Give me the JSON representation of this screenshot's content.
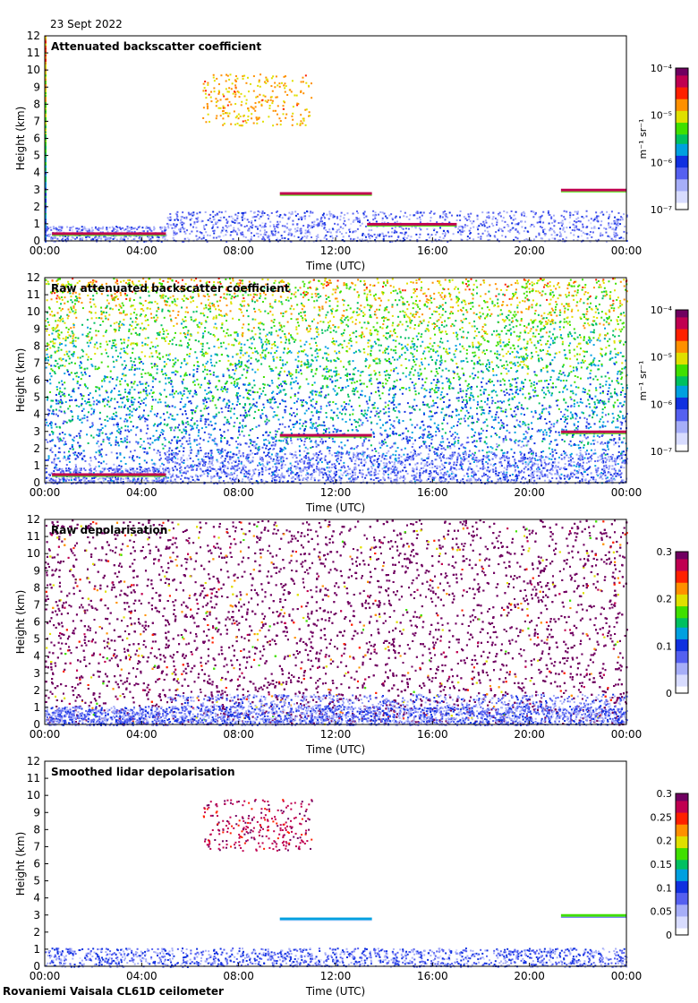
{
  "date": "23 Sept 2022",
  "footer": "Rovaniemi Vaisala CL61D ceilometer",
  "colormap": [
    "#ffffff",
    "#d8dcff",
    "#a6aef8",
    "#5560f0",
    "#1030e0",
    "#00a0e0",
    "#00c060",
    "#40e000",
    "#e0e000",
    "#ff9000",
    "#ff2000",
    "#c00050",
    "#700060"
  ],
  "chart_data": [
    {
      "type": "heatmap",
      "title": "Attenuated backscatter coefficient",
      "xlabel": "Time (UTC)",
      "ylabel": "Height (km)",
      "xlim": [
        0,
        24
      ],
      "ylim": [
        0,
        12
      ],
      "xticks": [
        "00:00",
        "04:00",
        "08:00",
        "12:00",
        "16:00",
        "20:00",
        "00:00"
      ],
      "yticks": [
        "0",
        "1",
        "2",
        "3",
        "4",
        "5",
        "6",
        "7",
        "8",
        "9",
        "10",
        "11",
        "12"
      ],
      "colorbar": {
        "scale": "log",
        "min": 1e-07,
        "max": 0.0001,
        "ticks": [
          "10⁻⁷",
          "10⁻⁶",
          "10⁻⁵",
          "10⁻⁴"
        ],
        "label": "m⁻¹ sr⁻¹"
      },
      "features": [
        {
          "name": "boundary layer",
          "from_h": 0,
          "to_h": 0,
          "level": 0.15
        },
        {
          "name": "cloud 0.4km",
          "from_h": 0.3,
          "to_h": 5,
          "height_km": 0.45,
          "level": 0.95
        },
        {
          "name": "cloud 2.8km",
          "from_h": 9.7,
          "to_h": 13.5,
          "height_km": 2.8,
          "level": 0.9
        },
        {
          "name": "cloud 1.0km",
          "from_h": 13.3,
          "to_h": 17,
          "height_km": 1.0,
          "level": 0.9
        },
        {
          "name": "cloud 3.0km",
          "from_h": 21.3,
          "to_h": 24,
          "height_km": 3.0,
          "level": 0.9
        },
        {
          "name": "high cirrus",
          "from_h": 6.5,
          "to_h": 11,
          "height_km": 8.3,
          "level": 0.8
        }
      ]
    },
    {
      "type": "heatmap",
      "title": "Raw attenuated backscatter coefficient",
      "xlabel": "Time (UTC)",
      "ylabel": "Height (km)",
      "xlim": [
        0,
        24
      ],
      "ylim": [
        0,
        12
      ],
      "xticks": [
        "00:00",
        "04:00",
        "08:00",
        "12:00",
        "16:00",
        "20:00",
        "00:00"
      ],
      "yticks": [
        "0",
        "1",
        "2",
        "3",
        "4",
        "5",
        "6",
        "7",
        "8",
        "9",
        "10",
        "11",
        "12"
      ],
      "colorbar": {
        "scale": "log",
        "min": 1e-07,
        "max": 0.0001,
        "ticks": [
          "10⁻⁷",
          "10⁻⁶",
          "10⁻⁵",
          "10⁻⁴"
        ],
        "label": "m⁻¹ sr⁻¹"
      },
      "features": [
        {
          "name": "noise field",
          "from_h": 0,
          "to_h": 24,
          "level": 0.45
        },
        {
          "name": "cloud 0.5km",
          "from_h": 0.3,
          "to_h": 5,
          "height_km": 0.5,
          "level": 0.95
        },
        {
          "name": "cloud 2.8km",
          "from_h": 9.7,
          "to_h": 13.5,
          "height_km": 2.8,
          "level": 0.9
        },
        {
          "name": "cloud 3.0km",
          "from_h": 21.3,
          "to_h": 24,
          "height_km": 3.0,
          "level": 0.9
        }
      ]
    },
    {
      "type": "heatmap",
      "title": "Raw depolarisation",
      "xlabel": "Time (UTC)",
      "ylabel": "Height (km)",
      "xlim": [
        0,
        24
      ],
      "ylim": [
        0,
        12
      ],
      "xticks": [
        "00:00",
        "04:00",
        "08:00",
        "12:00",
        "16:00",
        "20:00",
        "00:00"
      ],
      "yticks": [
        "0",
        "1",
        "2",
        "3",
        "4",
        "5",
        "6",
        "7",
        "8",
        "9",
        "10",
        "11",
        "12"
      ],
      "colorbar": {
        "scale": "linear",
        "min": 0,
        "max": 0.3,
        "ticks": [
          "0",
          "0.1",
          "0.2",
          "0.3"
        ],
        "label": ""
      },
      "features": [
        {
          "name": "noise field",
          "from_h": 0,
          "to_h": 24,
          "level": 1.0
        },
        {
          "name": "boundary layer",
          "from_h": 0,
          "to_h": 24,
          "height_km": 0.5,
          "level": 0.2
        }
      ]
    },
    {
      "type": "heatmap",
      "title": "Smoothed lidar depolarisation",
      "xlabel": "Time (UTC)",
      "ylabel": "Height (km)",
      "xlim": [
        0,
        24
      ],
      "ylim": [
        0,
        12
      ],
      "xticks": [
        "00:00",
        "04:00",
        "08:00",
        "12:00",
        "16:00",
        "20:00",
        "00:00"
      ],
      "yticks": [
        "0",
        "1",
        "2",
        "3",
        "4",
        "5",
        "6",
        "7",
        "8",
        "9",
        "10",
        "11",
        "12"
      ],
      "colorbar": {
        "scale": "linear",
        "min": 0,
        "max": 0.3,
        "ticks": [
          "0",
          "0.05",
          "0.1",
          "0.15",
          "0.2",
          "0.25",
          "0.3"
        ],
        "label": ""
      },
      "features": [
        {
          "name": "boundary layer",
          "from_h": 0,
          "to_h": 24,
          "height_km": 0.5,
          "level": 0.25
        },
        {
          "name": "cloud 2.8km",
          "from_h": 9.7,
          "to_h": 13.5,
          "height_km": 2.8,
          "level": 0.4
        },
        {
          "name": "cloud 3.0km",
          "from_h": 21.3,
          "to_h": 24,
          "height_km": 3.0,
          "level": 0.6
        },
        {
          "name": "high cirrus",
          "from_h": 6.5,
          "to_h": 11,
          "height_km": 8.3,
          "level": 1.0
        }
      ]
    }
  ]
}
